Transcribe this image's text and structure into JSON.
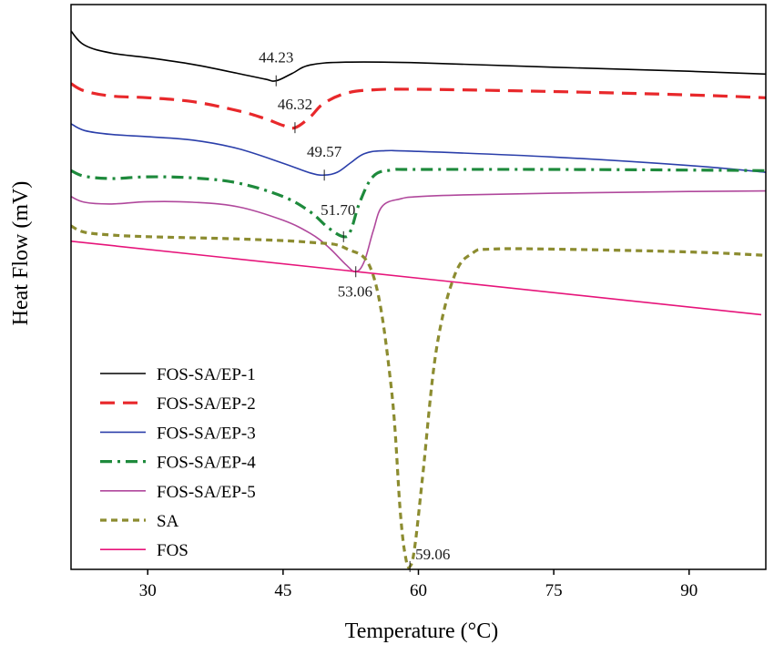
{
  "chart_data": {
    "type": "line",
    "title": "",
    "xlabel": "Temperature (°C)",
    "ylabel": "Heat Flow (mV)",
    "xlim": [
      21.5,
      98.5
    ],
    "ylim": [
      0,
      1
    ],
    "x_ticks": [
      30,
      45,
      60,
      75,
      90
    ],
    "y_ticks": [],
    "grid": false,
    "legend_position": "bottom-left",
    "series": [
      {
        "name": "FOS-SA/EP-1",
        "color": "#000000",
        "dash": "solid",
        "width": 1.6,
        "x": [
          21.5,
          23,
          26,
          30,
          35,
          40,
          43,
          44.23,
          46,
          48,
          52,
          60,
          75,
          90,
          98.5
        ],
        "y": [
          0.953,
          0.928,
          0.914,
          0.906,
          0.894,
          0.878,
          0.868,
          0.865,
          0.878,
          0.893,
          0.898,
          0.897,
          0.889,
          0.882,
          0.877
        ]
      },
      {
        "name": "FOS-SA/EP-2",
        "color": "#e8282b",
        "dash": "dashed",
        "width": 3.2,
        "x": [
          21.5,
          23,
          26,
          30,
          35,
          40,
          43,
          45,
          46.32,
          48,
          49.5,
          52,
          55,
          60,
          75,
          90,
          98.5
        ],
        "y": [
          0.86,
          0.847,
          0.838,
          0.835,
          0.828,
          0.812,
          0.798,
          0.786,
          0.782,
          0.801,
          0.825,
          0.843,
          0.849,
          0.85,
          0.846,
          0.84,
          0.835
        ]
      },
      {
        "name": "FOS-SA/EP-3",
        "color": "#2b3faa",
        "dash": "solid",
        "width": 1.6,
        "x": [
          21.5,
          23,
          26,
          30,
          35,
          40,
          45,
          48,
          49.57,
          51,
          52.5,
          54,
          56,
          60,
          75,
          90,
          98.5
        ],
        "y": [
          0.789,
          0.777,
          0.77,
          0.766,
          0.76,
          0.745,
          0.719,
          0.702,
          0.698,
          0.703,
          0.72,
          0.736,
          0.741,
          0.74,
          0.73,
          0.715,
          0.703
        ]
      },
      {
        "name": "FOS-SA/EP-4",
        "color": "#1e8a3c",
        "dash": "dashdot",
        "width": 3.2,
        "x": [
          21.5,
          23,
          26,
          30,
          35,
          40,
          45,
          48,
          50,
          51.7,
          52.5,
          53.5,
          55,
          57,
          60,
          75,
          90,
          98.5
        ],
        "y": [
          0.706,
          0.696,
          0.692,
          0.695,
          0.693,
          0.684,
          0.66,
          0.633,
          0.605,
          0.589,
          0.6,
          0.65,
          0.696,
          0.707,
          0.708,
          0.708,
          0.707,
          0.706
        ]
      },
      {
        "name": "FOS-SA/EP-5",
        "color": "#b0489c",
        "dash": "solid",
        "width": 1.6,
        "x": [
          21.5,
          23,
          26,
          30,
          35,
          40,
          45,
          48,
          50,
          52,
          53.06,
          54,
          55,
          56,
          58,
          60,
          65,
          75,
          90,
          98.5
        ],
        "y": [
          0.66,
          0.65,
          0.647,
          0.651,
          0.65,
          0.642,
          0.618,
          0.595,
          0.571,
          0.539,
          0.527,
          0.545,
          0.6,
          0.643,
          0.656,
          0.66,
          0.663,
          0.666,
          0.669,
          0.67
        ]
      },
      {
        "name": "SA",
        "color": "#8c8c30",
        "dash": "dotted",
        "width": 3.2,
        "x": [
          21.5,
          23,
          26,
          30,
          40,
          48,
          52,
          55,
          57,
          58,
          58.6,
          59.06,
          59.6,
          60.5,
          62,
          64,
          66,
          68,
          75,
          90,
          98.5
        ],
        "y": [
          0.608,
          0.597,
          0.592,
          0.589,
          0.585,
          0.579,
          0.568,
          0.52,
          0.32,
          0.1,
          0.02,
          0.005,
          0.04,
          0.17,
          0.39,
          0.52,
          0.56,
          0.567,
          0.567,
          0.562,
          0.556
        ]
      },
      {
        "name": "FOS",
        "color": "#e6147a",
        "dash": "solid",
        "width": 1.6,
        "x": [
          21.5,
          98
        ],
        "y": [
          0.581,
          0.451
        ]
      }
    ],
    "annotations": [
      {
        "text": "44.23",
        "x": 44.23,
        "y": 0.865,
        "series": "FOS-SA/EP-1",
        "placement": "above"
      },
      {
        "text": "46.32",
        "x": 46.32,
        "y": 0.782,
        "series": "FOS-SA/EP-2",
        "placement": "above"
      },
      {
        "text": "49.57",
        "x": 49.57,
        "y": 0.698,
        "series": "FOS-SA/EP-3",
        "placement": "above"
      },
      {
        "text": "51.70",
        "x": 51.7,
        "y": 0.589,
        "series": "FOS-SA/EP-4",
        "placement": "above-left"
      },
      {
        "text": "53.06",
        "x": 53.06,
        "y": 0.527,
        "series": "FOS-SA/EP-5",
        "placement": "below"
      },
      {
        "text": "59.06",
        "x": 59.06,
        "y": 0.005,
        "series": "SA",
        "placement": "right"
      }
    ]
  }
}
